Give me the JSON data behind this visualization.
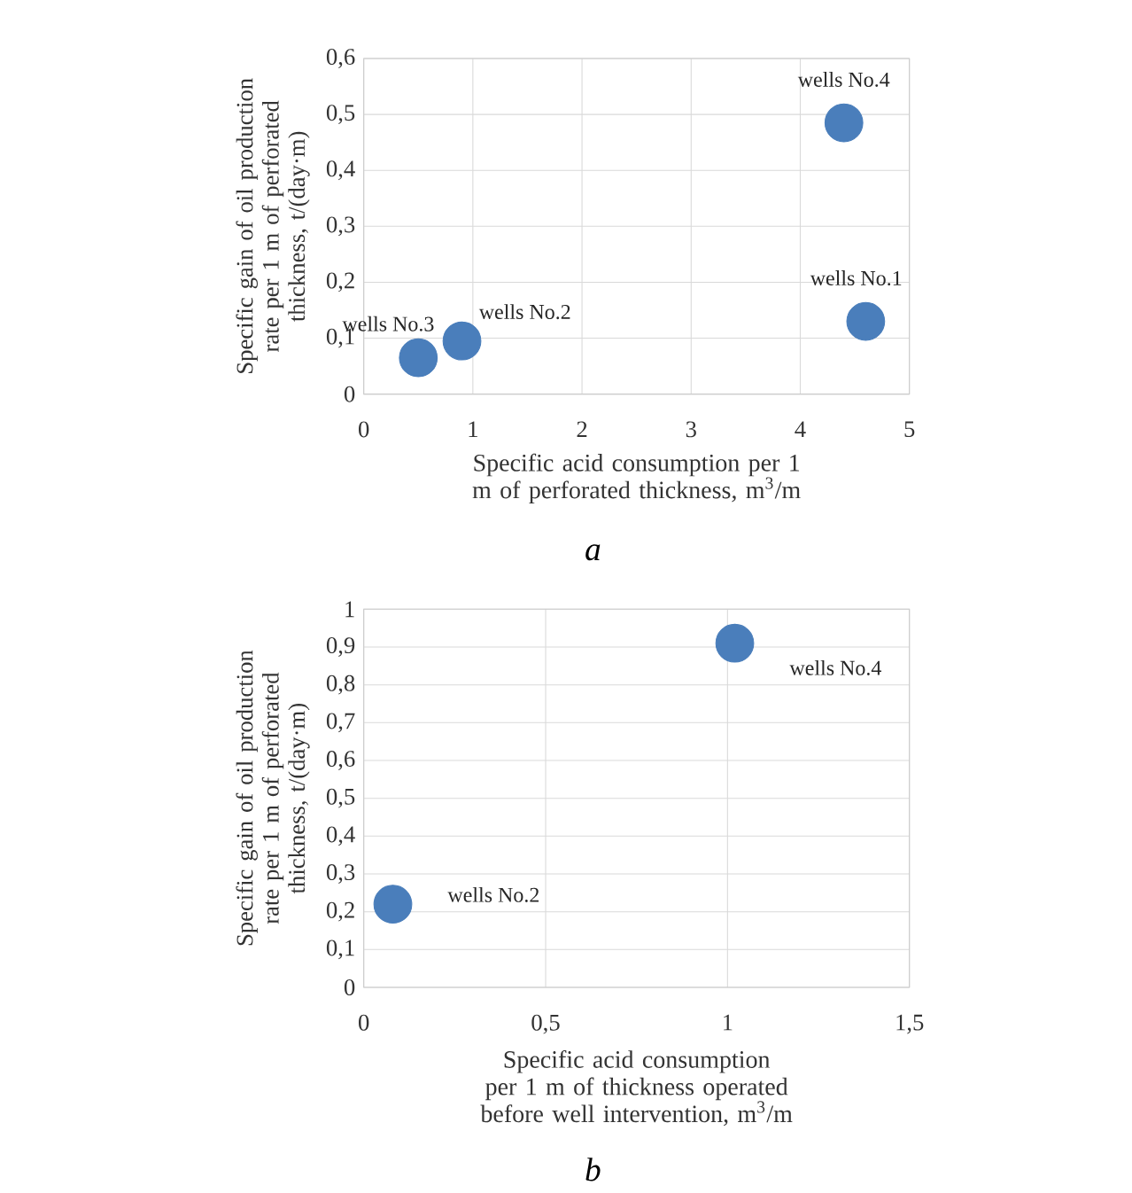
{
  "chart_data": [
    {
      "type": "scatter",
      "xlabel": "Specific acid consumption per 1 m of perforated thickness, m$^{3}$/m",
      "ylabel": "Specific gain of oil production rate per 1 m of perforated thickness, t/(day·m)",
      "x": [
        0.5,
        0.9,
        4.4,
        4.6
      ],
      "values": [
        0.065,
        0.095,
        0.485,
        0.13
      ],
      "color": "#4a7ebb",
      "marker": "circle",
      "grid": true,
      "xlim": [
        0,
        5
      ],
      "xticks": [
        0,
        1,
        2,
        3,
        4,
        5
      ],
      "ylim": [
        0,
        0.6
      ],
      "yticks": [
        0,
        {
          "value": 0.1,
          "label": "0,1"
        },
        {
          "value": 0.2,
          "label": "0,2"
        },
        {
          "value": 0.3,
          "label": "0,3"
        },
        {
          "value": 0.4,
          "label": "0,4"
        },
        {
          "value": 0.5,
          "label": "0,5"
        },
        {
          "value": 0.6,
          "label": "0,6"
        }
      ],
      "annotations": [
        {
          "text": "wells No.3",
          "x": 0.5,
          "y": 0.065
        },
        {
          "text": "wells No.2",
          "x": 0.9,
          "y": 0.095
        },
        {
          "text": "wells No.4",
          "x": 4.4,
          "y": 0.485
        },
        {
          "text": "wells No.1",
          "x": 4.6,
          "y": 0.13
        },
        "a"
      ]
    },
    {
      "type": "scatter",
      "xlabel": "Specific acid consumption per 1 m of thickness operated before well intervention, m$^{3}$/m",
      "ylabel": "Specific gain of oil production rate per 1 m of perforated thickness, t/(day·m)",
      "x": [
        0.08,
        1.02
      ],
      "values": [
        0.22,
        0.91
      ],
      "color": "#4a7ebb",
      "marker": "circle",
      "grid": true,
      "xlim": [
        0,
        1.5
      ],
      "xticks": [
        0,
        {
          "value": 0.5,
          "label": "0,5"
        },
        1,
        {
          "value": 1.5,
          "label": "1,5"
        }
      ],
      "ylim": [
        0,
        1
      ],
      "yticks": [
        0,
        {
          "value": 0.1,
          "label": "0,1"
        },
        {
          "value": 0.2,
          "label": "0,2"
        },
        {
          "value": 0.3,
          "label": "0,3"
        },
        {
          "value": 0.4,
          "label": "0,4"
        },
        {
          "value": 0.5,
          "label": "0,5"
        },
        {
          "value": 0.6,
          "label": "0,6"
        },
        {
          "value": 0.7,
          "label": "0,7"
        },
        {
          "value": 0.8,
          "label": "0,8"
        },
        {
          "value": 0.9,
          "label": "0,9"
        },
        1
      ],
      "annotations": [
        {
          "text": "wells No.2",
          "x": 0.08,
          "y": 0.22
        },
        {
          "text": "wells No.4",
          "x": 1.02,
          "y": 0.91
        },
        "b"
      ]
    }
  ]
}
